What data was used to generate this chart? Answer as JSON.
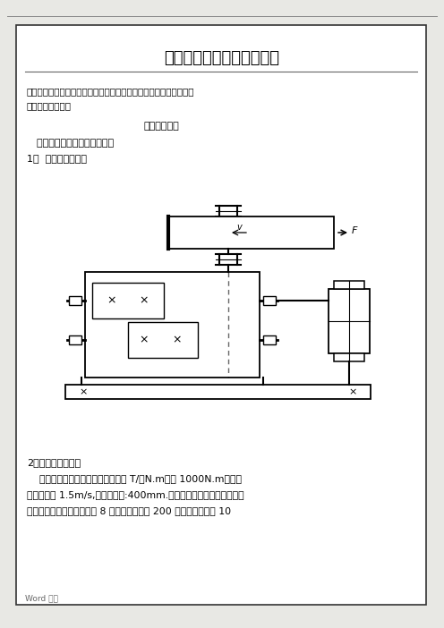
{
  "bg_color": "#e8e8e4",
  "page_bg": "#ffffff",
  "border_color": "#333333",
  "title": "可编辑修改精选全文完整版",
  "notice_line1": "注意：需要的同学，要根据要求将相应的数据进行相应的处理，以便",
  "notice_line2": "设计的顺利进行！",
  "section1": "一、设计题目",
  "subtitle": "  带式输送机传动装置课程设计",
  "item1": "1、  传动装置简图：",
  "item2": "2．课程设计任务：",
  "desc_line1": "    已知二级减速器，运输机工作转矩 T/（N.m）为 1000N.m，运输",
  "desc_line2": "带工作速度 1.5m/s,卷阳筒直径:400mm.工作条件：连续单向运转，工",
  "desc_line3": "作时有轻微震动，每天工作 8 小时，每年工作 200 天，使用期限为 10",
  "footer": "Word 文档",
  "top_line_color": "#888888"
}
